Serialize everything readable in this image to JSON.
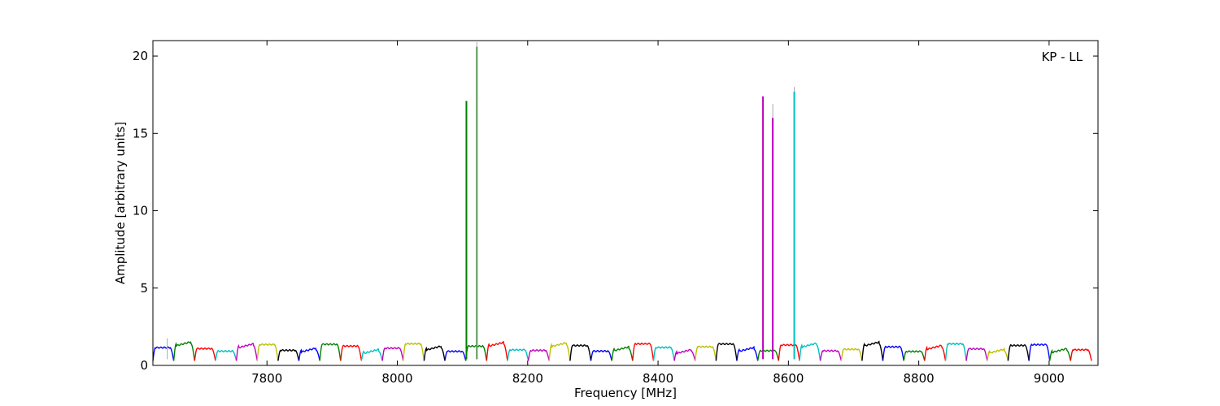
{
  "chart_data": {
    "type": "line",
    "annotation": "KP - LL",
    "xlabel": "Frequency [MHz]",
    "ylabel": "Amplitude [arbitrary units]",
    "xlim": [
      7625,
      9075
    ],
    "ylim": [
      0,
      21
    ],
    "xticks": [
      7800,
      8000,
      8200,
      8400,
      8600,
      8800,
      9000
    ],
    "yticks": [
      0,
      5,
      10,
      15,
      20
    ],
    "grid": false,
    "channel_start": 7625,
    "channel_width": 32,
    "channel_count": 45,
    "colors": [
      "#0000ff",
      "#008000",
      "#ff0000",
      "#00bfbf",
      "#bf00bf",
      "#bfbf00",
      "#000000"
    ],
    "spikes": [
      {
        "x": 8106,
        "y": 17.1,
        "color": "#008000"
      },
      {
        "x": 8122,
        "y": 20.6,
        "color": "#008000"
      },
      {
        "x": 8122,
        "y": 20.9,
        "color": "#aaaaaa"
      },
      {
        "x": 8561,
        "y": 17.4,
        "color": "#bf00bf"
      },
      {
        "x": 8576,
        "y": 16.9,
        "color": "#aaaaaa"
      },
      {
        "x": 8576,
        "y": 16.0,
        "color": "#bf00bf"
      },
      {
        "x": 8609,
        "y": 18.0,
        "color": "#aaaaaa"
      },
      {
        "x": 8609,
        "y": 17.7,
        "color": "#00bfbf"
      },
      {
        "x": 7647,
        "y": 1.75,
        "color": "#aaaaaa"
      }
    ]
  }
}
